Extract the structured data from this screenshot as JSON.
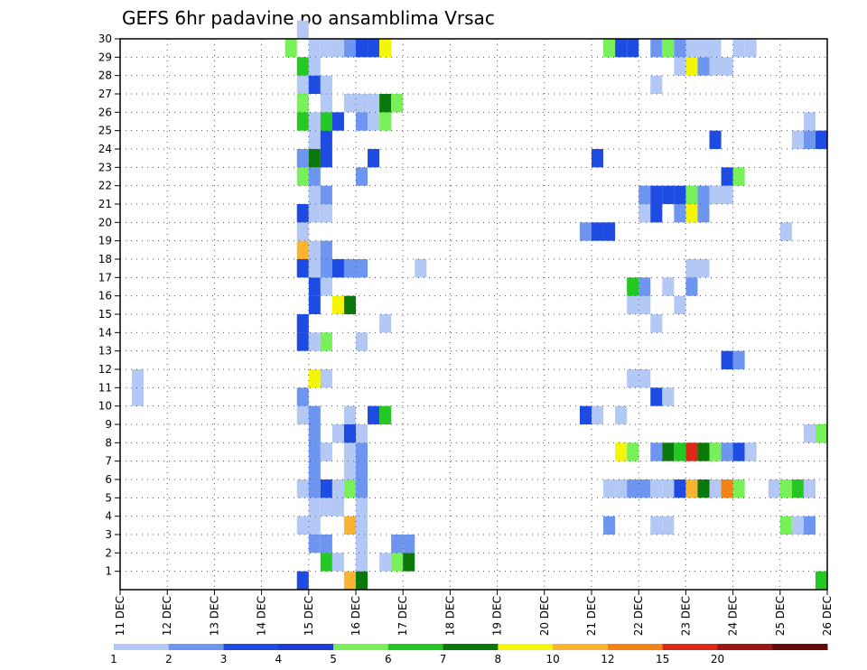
{
  "chart_data": {
    "type": "heatmap",
    "title": "GEFS 6hr padavine po ansamblima Vrsac",
    "xlabel": "",
    "ylabel": "",
    "x_tick_labels": [
      "11 DEC",
      "12 DEC",
      "13 DEC",
      "14 DEC",
      "15 DEC",
      "16 DEC",
      "17 DEC",
      "18 DEC",
      "19 DEC",
      "20 DEC",
      "21 DEC",
      "22 DEC",
      "23 DEC",
      "24 DEC",
      "25 DEC",
      "26 DEC"
    ],
    "y_tick_labels": [
      "1",
      "2",
      "3",
      "4",
      "5",
      "6",
      "7",
      "8",
      "9",
      "10",
      "11",
      "12",
      "13",
      "14",
      "15",
      "16",
      "17",
      "18",
      "19",
      "20",
      "21",
      "22",
      "23",
      "24",
      "25",
      "26",
      "27",
      "28",
      "29",
      "30"
    ],
    "grid": true,
    "legend": {
      "placement": "bottom",
      "labels": [
        "1",
        "2",
        "3",
        "4",
        "5",
        "6",
        "7",
        "8",
        "10",
        "12",
        "15",
        "20"
      ],
      "colors": [
        "#b4c8f5",
        "#6e96f0",
        "#1e4be1",
        "#1e3cd2",
        "#78f05a",
        "#23c823",
        "#0a780a",
        "#f5f50a",
        "#fab432",
        "#f58214",
        "#dc2814",
        "#a01414",
        "#640a0a"
      ]
    },
    "palette": [
      "#b4c8f5",
      "#6e96f0",
      "#1e4be1",
      "#78f05a",
      "#23c823",
      "#0a780a",
      "#f5f50a",
      "#fab432",
      "#f58214",
      "#dc2814",
      "#a01414"
    ],
    "cells": [
      {
        "d": "11 DEC 06",
        "m": 11,
        "c": 0
      },
      {
        "d": "11 DEC 06",
        "m": 10,
        "c": 0
      },
      {
        "d": "14 DEC 18",
        "m": 0,
        "c": 2
      },
      {
        "d": "14 DEC 18",
        "m": 3,
        "c": 0
      },
      {
        "d": "14 DEC 18",
        "m": 5,
        "c": 0
      },
      {
        "d": "14 DEC 18",
        "m": 9,
        "c": 0
      },
      {
        "d": "14 DEC 18",
        "m": 10,
        "c": 1
      },
      {
        "d": "14 DEC 18",
        "m": 13,
        "c": 2
      },
      {
        "d": "14 DEC 18",
        "m": 14,
        "c": 2
      },
      {
        "d": "14 DEC 18",
        "m": 17,
        "c": 2
      },
      {
        "d": "14 DEC 18",
        "m": 18,
        "c": 7
      },
      {
        "d": "14 DEC 18",
        "m": 19,
        "c": 0
      },
      {
        "d": "14 DEC 18",
        "m": 20,
        "c": 2
      },
      {
        "d": "14 DEC 18",
        "m": 22,
        "c": 3
      },
      {
        "d": "14 DEC 18",
        "m": 23,
        "c": 1
      },
      {
        "d": "14 DEC 18",
        "m": 25,
        "c": 4
      },
      {
        "d": "14 DEC 18",
        "m": 26,
        "c": 3
      },
      {
        "d": "14 DEC 18",
        "m": 27,
        "c": 0
      },
      {
        "d": "14 DEC 18",
        "m": 28,
        "c": 4
      },
      {
        "d": "14 DEC 18",
        "m": 30,
        "c": 0
      },
      {
        "d": "14 DEC 12",
        "m": 29,
        "c": 3
      },
      {
        "d": "15 DEC 00",
        "m": 2,
        "c": 1
      },
      {
        "d": "15 DEC 00",
        "m": 3,
        "c": 0
      },
      {
        "d": "15 DEC 00",
        "m": 4,
        "c": 0
      },
      {
        "d": "15 DEC 00",
        "m": 5,
        "c": 1
      },
      {
        "d": "15 DEC 00",
        "m": 6,
        "c": 1
      },
      {
        "d": "15 DEC 00",
        "m": 7,
        "c": 1
      },
      {
        "d": "15 DEC 00",
        "m": 8,
        "c": 1
      },
      {
        "d": "15 DEC 00",
        "m": 9,
        "c": 1
      },
      {
        "d": "15 DEC 00",
        "m": 11,
        "c": 6
      },
      {
        "d": "15 DEC 00",
        "m": 13,
        "c": 0
      },
      {
        "d": "15 DEC 00",
        "m": 15,
        "c": 2
      },
      {
        "d": "15 DEC 00",
        "m": 16,
        "c": 2
      },
      {
        "d": "15 DEC 00",
        "m": 17,
        "c": 0
      },
      {
        "d": "15 DEC 00",
        "m": 18,
        "c": 0
      },
      {
        "d": "15 DEC 00",
        "m": 20,
        "c": 0
      },
      {
        "d": "15 DEC 00",
        "m": 21,
        "c": 0
      },
      {
        "d": "15 DEC 00",
        "m": 22,
        "c": 1
      },
      {
        "d": "15 DEC 00",
        "m": 23,
        "c": 5
      },
      {
        "d": "15 DEC 00",
        "m": 24,
        "c": 0
      },
      {
        "d": "15 DEC 00",
        "m": 25,
        "c": 0
      },
      {
        "d": "15 DEC 00",
        "m": 27,
        "c": 2
      },
      {
        "d": "15 DEC 00",
        "m": 28,
        "c": 0
      },
      {
        "d": "15 DEC 00",
        "m": 29,
        "c": 0
      },
      {
        "d": "15 DEC 06",
        "m": 1,
        "c": 4
      },
      {
        "d": "15 DEC 06",
        "m": 2,
        "c": 1
      },
      {
        "d": "15 DEC 06",
        "m": 4,
        "c": 0
      },
      {
        "d": "15 DEC 06",
        "m": 5,
        "c": 2
      },
      {
        "d": "15 DEC 06",
        "m": 7,
        "c": 0
      },
      {
        "d": "15 DEC 06",
        "m": 11,
        "c": 0
      },
      {
        "d": "15 DEC 06",
        "m": 13,
        "c": 3
      },
      {
        "d": "15 DEC 06",
        "m": 16,
        "c": 0
      },
      {
        "d": "15 DEC 06",
        "m": 17,
        "c": 1
      },
      {
        "d": "15 DEC 06",
        "m": 18,
        "c": 1
      },
      {
        "d": "15 DEC 06",
        "m": 20,
        "c": 0
      },
      {
        "d": "15 DEC 06",
        "m": 21,
        "c": 1
      },
      {
        "d": "15 DEC 06",
        "m": 23,
        "c": 2
      },
      {
        "d": "15 DEC 06",
        "m": 24,
        "c": 2
      },
      {
        "d": "15 DEC 06",
        "m": 25,
        "c": 4
      },
      {
        "d": "15 DEC 06",
        "m": 26,
        "c": 0
      },
      {
        "d": "15 DEC 06",
        "m": 27,
        "c": 0
      },
      {
        "d": "15 DEC 06",
        "m": 29,
        "c": 0
      },
      {
        "d": "15 DEC 12",
        "m": 1,
        "c": 0
      },
      {
        "d": "15 DEC 12",
        "m": 4,
        "c": 0
      },
      {
        "d": "15 DEC 12",
        "m": 5,
        "c": 0
      },
      {
        "d": "15 DEC 12",
        "m": 8,
        "c": 0
      },
      {
        "d": "15 DEC 12",
        "m": 15,
        "c": 6
      },
      {
        "d": "15 DEC 12",
        "m": 17,
        "c": 2
      },
      {
        "d": "15 DEC 12",
        "m": 25,
        "c": 2
      },
      {
        "d": "15 DEC 12",
        "m": 29,
        "c": 0
      },
      {
        "d": "15 DEC 18",
        "m": 0,
        "c": 7
      },
      {
        "d": "15 DEC 18",
        "m": 3,
        "c": 7
      },
      {
        "d": "15 DEC 18",
        "m": 5,
        "c": 3
      },
      {
        "d": "15 DEC 18",
        "m": 6,
        "c": 0
      },
      {
        "d": "15 DEC 18",
        "m": 7,
        "c": 0
      },
      {
        "d": "15 DEC 18",
        "m": 8,
        "c": 2
      },
      {
        "d": "15 DEC 18",
        "m": 9,
        "c": 0
      },
      {
        "d": "15 DEC 18",
        "m": 15,
        "c": 5
      },
      {
        "d": "15 DEC 18",
        "m": 17,
        "c": 1
      },
      {
        "d": "15 DEC 18",
        "m": 26,
        "c": 0
      },
      {
        "d": "15 DEC 18",
        "m": 29,
        "c": 1
      },
      {
        "d": "16 DEC 00",
        "m": 0,
        "c": 5
      },
      {
        "d": "16 DEC 00",
        "m": 1,
        "c": 0
      },
      {
        "d": "16 DEC 00",
        "m": 2,
        "c": 0
      },
      {
        "d": "16 DEC 00",
        "m": 3,
        "c": 0
      },
      {
        "d": "16 DEC 00",
        "m": 4,
        "c": 0
      },
      {
        "d": "16 DEC 00",
        "m": 5,
        "c": 1
      },
      {
        "d": "16 DEC 00",
        "m": 6,
        "c": 1
      },
      {
        "d": "16 DEC 00",
        "m": 7,
        "c": 1
      },
      {
        "d": "16 DEC 00",
        "m": 8,
        "c": 0
      },
      {
        "d": "16 DEC 00",
        "m": 13,
        "c": 0
      },
      {
        "d": "16 DEC 00",
        "m": 17,
        "c": 1
      },
      {
        "d": "16 DEC 00",
        "m": 22,
        "c": 1
      },
      {
        "d": "16 DEC 00",
        "m": 25,
        "c": 1
      },
      {
        "d": "16 DEC 00",
        "m": 26,
        "c": 0
      },
      {
        "d": "16 DEC 00",
        "m": 29,
        "c": 2
      },
      {
        "d": "16 DEC 06",
        "m": 9,
        "c": 2
      },
      {
        "d": "16 DEC 06",
        "m": 23,
        "c": 2
      },
      {
        "d": "16 DEC 06",
        "m": 25,
        "c": 0
      },
      {
        "d": "16 DEC 06",
        "m": 26,
        "c": 0
      },
      {
        "d": "16 DEC 06",
        "m": 29,
        "c": 2
      },
      {
        "d": "16 DEC 12",
        "m": 1,
        "c": 0
      },
      {
        "d": "16 DEC 12",
        "m": 9,
        "c": 4
      },
      {
        "d": "16 DEC 12",
        "m": 14,
        "c": 0
      },
      {
        "d": "16 DEC 12",
        "m": 25,
        "c": 3
      },
      {
        "d": "16 DEC 12",
        "m": 26,
        "c": 5
      },
      {
        "d": "16 DEC 12",
        "m": 29,
        "c": 6
      },
      {
        "d": "16 DEC 18",
        "m": 1,
        "c": 3
      },
      {
        "d": "16 DEC 18",
        "m": 2,
        "c": 1
      },
      {
        "d": "16 DEC 18",
        "m": 26,
        "c": 3
      },
      {
        "d": "17 DEC 00",
        "m": 1,
        "c": 5
      },
      {
        "d": "17 DEC 00",
        "m": 2,
        "c": 1
      },
      {
        "d": "17 DEC 06",
        "m": 17,
        "c": 0
      },
      {
        "d": "20 DEC 18",
        "m": 9,
        "c": 2
      },
      {
        "d": "20 DEC 18",
        "m": 19,
        "c": 1
      },
      {
        "d": "21 DEC 00",
        "m": 9,
        "c": 0
      },
      {
        "d": "21 DEC 00",
        "m": 19,
        "c": 2
      },
      {
        "d": "21 DEC 00",
        "m": 23,
        "c": 2
      },
      {
        "d": "21 DEC 06",
        "m": 3,
        "c": 1
      },
      {
        "d": "21 DEC 06",
        "m": 5,
        "c": 0
      },
      {
        "d": "21 DEC 06",
        "m": 19,
        "c": 2
      },
      {
        "d": "21 DEC 06",
        "m": 29,
        "c": 3
      },
      {
        "d": "21 DEC 12",
        "m": 5,
        "c": 0
      },
      {
        "d": "21 DEC 12",
        "m": 7,
        "c": 6
      },
      {
        "d": "21 DEC 12",
        "m": 9,
        "c": 0
      },
      {
        "d": "21 DEC 12",
        "m": 29,
        "c": 2
      },
      {
        "d": "21 DEC 18",
        "m": 5,
        "c": 1
      },
      {
        "d": "21 DEC 18",
        "m": 7,
        "c": 3
      },
      {
        "d": "21 DEC 18",
        "m": 11,
        "c": 0
      },
      {
        "d": "21 DEC 18",
        "m": 15,
        "c": 0
      },
      {
        "d": "21 DEC 18",
        "m": 16,
        "c": 4
      },
      {
        "d": "21 DEC 18",
        "m": 29,
        "c": 2
      },
      {
        "d": "22 DEC 00",
        "m": 5,
        "c": 1
      },
      {
        "d": "22 DEC 00",
        "m": 11,
        "c": 0
      },
      {
        "d": "22 DEC 00",
        "m": 15,
        "c": 0
      },
      {
        "d": "22 DEC 00",
        "m": 16,
        "c": 1
      },
      {
        "d": "22 DEC 00",
        "m": 20,
        "c": 0
      },
      {
        "d": "22 DEC 00",
        "m": 21,
        "c": 1
      },
      {
        "d": "22 DEC 06",
        "m": 3,
        "c": 0
      },
      {
        "d": "22 DEC 06",
        "m": 5,
        "c": 0
      },
      {
        "d": "22 DEC 06",
        "m": 7,
        "c": 1
      },
      {
        "d": "22 DEC 06",
        "m": 10,
        "c": 2
      },
      {
        "d": "22 DEC 06",
        "m": 14,
        "c": 0
      },
      {
        "d": "22 DEC 06",
        "m": 20,
        "c": 2
      },
      {
        "d": "22 DEC 06",
        "m": 21,
        "c": 2
      },
      {
        "d": "22 DEC 06",
        "m": 27,
        "c": 0
      },
      {
        "d": "22 DEC 06",
        "m": 29,
        "c": 1
      },
      {
        "d": "22 DEC 12",
        "m": 3,
        "c": 0
      },
      {
        "d": "22 DEC 12",
        "m": 5,
        "c": 0
      },
      {
        "d": "22 DEC 12",
        "m": 7,
        "c": 5
      },
      {
        "d": "22 DEC 12",
        "m": 10,
        "c": 0
      },
      {
        "d": "22 DEC 12",
        "m": 16,
        "c": 0
      },
      {
        "d": "22 DEC 12",
        "m": 21,
        "c": 2
      },
      {
        "d": "22 DEC 12",
        "m": 29,
        "c": 3
      },
      {
        "d": "22 DEC 18",
        "m": 5,
        "c": 2
      },
      {
        "d": "22 DEC 18",
        "m": 7,
        "c": 4
      },
      {
        "d": "22 DEC 18",
        "m": 15,
        "c": 0
      },
      {
        "d": "22 DEC 18",
        "m": 20,
        "c": 1
      },
      {
        "d": "22 DEC 18",
        "m": 21,
        "c": 2
      },
      {
        "d": "22 DEC 18",
        "m": 28,
        "c": 0
      },
      {
        "d": "22 DEC 18",
        "m": 29,
        "c": 1
      },
      {
        "d": "23 DEC 00",
        "m": 5,
        "c": 7
      },
      {
        "d": "23 DEC 00",
        "m": 7,
        "c": 9
      },
      {
        "d": "23 DEC 00",
        "m": 16,
        "c": 1
      },
      {
        "d": "23 DEC 00",
        "m": 17,
        "c": 0
      },
      {
        "d": "23 DEC 00",
        "m": 20,
        "c": 6
      },
      {
        "d": "23 DEC 00",
        "m": 21,
        "c": 3
      },
      {
        "d": "23 DEC 00",
        "m": 28,
        "c": 6
      },
      {
        "d": "23 DEC 00",
        "m": 29,
        "c": 0
      },
      {
        "d": "23 DEC 06",
        "m": 5,
        "c": 5
      },
      {
        "d": "23 DEC 06",
        "m": 7,
        "c": 5
      },
      {
        "d": "23 DEC 06",
        "m": 17,
        "c": 0
      },
      {
        "d": "23 DEC 06",
        "m": 20,
        "c": 1
      },
      {
        "d": "23 DEC 06",
        "m": 21,
        "c": 1
      },
      {
        "d": "23 DEC 06",
        "m": 28,
        "c": 1
      },
      {
        "d": "23 DEC 06",
        "m": 29,
        "c": 0
      },
      {
        "d": "23 DEC 12",
        "m": 5,
        "c": 0
      },
      {
        "d": "23 DEC 12",
        "m": 7,
        "c": 3
      },
      {
        "d": "23 DEC 12",
        "m": 21,
        "c": 0
      },
      {
        "d": "23 DEC 12",
        "m": 24,
        "c": 2
      },
      {
        "d": "23 DEC 12",
        "m": 28,
        "c": 0
      },
      {
        "d": "23 DEC 12",
        "m": 29,
        "c": 0
      },
      {
        "d": "23 DEC 18",
        "m": 5,
        "c": 8
      },
      {
        "d": "23 DEC 18",
        "m": 7,
        "c": 1
      },
      {
        "d": "23 DEC 18",
        "m": 12,
        "c": 2
      },
      {
        "d": "23 DEC 18",
        "m": 21,
        "c": 0
      },
      {
        "d": "23 DEC 18",
        "m": 22,
        "c": 2
      },
      {
        "d": "23 DEC 18",
        "m": 28,
        "c": 0
      },
      {
        "d": "24 DEC 00",
        "m": 5,
        "c": 3
      },
      {
        "d": "24 DEC 00",
        "m": 7,
        "c": 2
      },
      {
        "d": "24 DEC 00",
        "m": 12,
        "c": 1
      },
      {
        "d": "24 DEC 00",
        "m": 22,
        "c": 3
      },
      {
        "d": "24 DEC 00",
        "m": 29,
        "c": 0
      },
      {
        "d": "24 DEC 06",
        "m": 7,
        "c": 0
      },
      {
        "d": "24 DEC 06",
        "m": 29,
        "c": 0
      },
      {
        "d": "24 DEC 18",
        "m": 5,
        "c": 0
      },
      {
        "d": "25 DEC 00",
        "m": 3,
        "c": 3
      },
      {
        "d": "25 DEC 00",
        "m": 5,
        "c": 3
      },
      {
        "d": "25 DEC 00",
        "m": 19,
        "c": 0
      },
      {
        "d": "25 DEC 06",
        "m": 3,
        "c": 0
      },
      {
        "d": "25 DEC 06",
        "m": 5,
        "c": 4
      },
      {
        "d": "25 DEC 06",
        "m": 24,
        "c": 0
      },
      {
        "d": "25 DEC 12",
        "m": 3,
        "c": 1
      },
      {
        "d": "25 DEC 12",
        "m": 5,
        "c": 0
      },
      {
        "d": "25 DEC 12",
        "m": 8,
        "c": 0
      },
      {
        "d": "25 DEC 12",
        "m": 24,
        "c": 1
      },
      {
        "d": "25 DEC 12",
        "m": 25,
        "c": 0
      },
      {
        "d": "25 DEC 18",
        "m": 0,
        "c": 4
      },
      {
        "d": "25 DEC 18",
        "m": 8,
        "c": 3
      },
      {
        "d": "25 DEC 18",
        "m": 24,
        "c": 2
      }
    ]
  }
}
